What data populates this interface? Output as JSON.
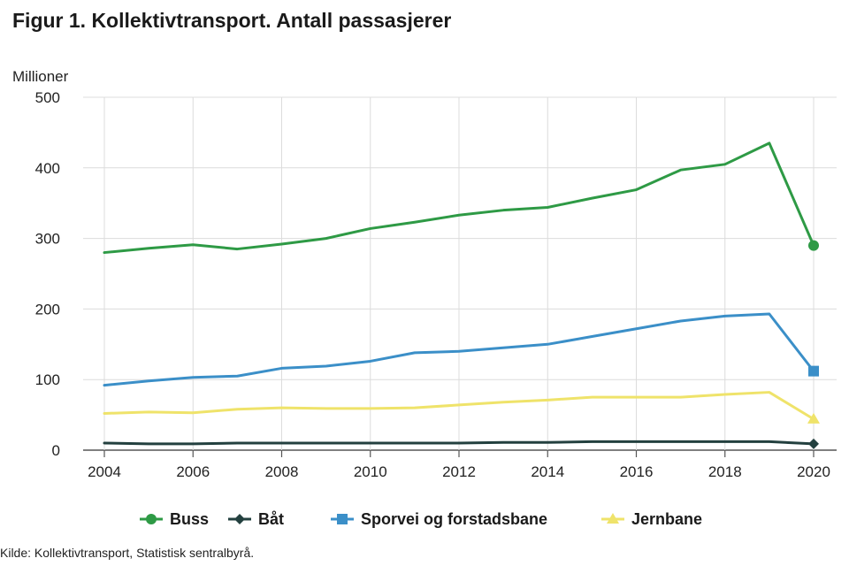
{
  "chart_data": {
    "type": "line",
    "title": "Figur 1. Kollektivtransport. Antall passasjerer",
    "ylabel": "Millioner",
    "xlabel": "",
    "ylim": [
      0,
      500
    ],
    "yticks": [
      0,
      100,
      200,
      300,
      400,
      500
    ],
    "xticks": [
      2004,
      2006,
      2008,
      2010,
      2012,
      2014,
      2016,
      2018,
      2020
    ],
    "x": [
      2004,
      2005,
      2006,
      2007,
      2008,
      2009,
      2010,
      2011,
      2012,
      2013,
      2014,
      2015,
      2016,
      2017,
      2018,
      2019,
      2020
    ],
    "series": [
      {
        "name": "Buss",
        "color": "#2e9a45",
        "marker": "circle",
        "values": [
          280,
          286,
          291,
          285,
          292,
          300,
          314,
          323,
          333,
          340,
          344,
          357,
          369,
          397,
          405,
          435,
          290
        ]
      },
      {
        "name": "Båt",
        "color": "#23403f",
        "marker": "diamond",
        "values": [
          10,
          9,
          9,
          10,
          10,
          10,
          10,
          10,
          10,
          11,
          11,
          12,
          12,
          12,
          12,
          12,
          9
        ]
      },
      {
        "name": "Sporvei og forstadsbane",
        "color": "#3b8fc8",
        "marker": "square",
        "values": [
          92,
          98,
          103,
          105,
          116,
          119,
          126,
          138,
          140,
          145,
          150,
          161,
          172,
          183,
          190,
          193,
          112
        ]
      },
      {
        "name": "Jernbane",
        "color": "#efe36a",
        "marker": "triangle",
        "values": [
          52,
          54,
          53,
          58,
          60,
          59,
          59,
          60,
          64,
          68,
          71,
          75,
          75,
          75,
          79,
          82,
          44
        ]
      }
    ],
    "legend_position": "bottom"
  },
  "source": "Kilde: Kollektivtransport, Statistisk sentralbyrå."
}
